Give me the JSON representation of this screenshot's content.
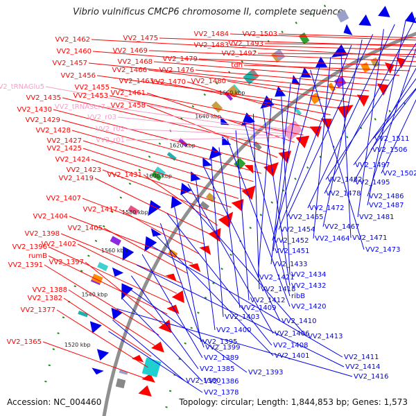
{
  "title": "Vibrio vulnificus CMCP6 chromosome II, complete sequence",
  "footer": {
    "accession": "Accession: NC_004460",
    "summary": "Topology: circular; Length: 1,844,853 bp; Genes: 1,573"
  },
  "colors": {
    "forward": "#ff0000",
    "reverse": "#0000ee",
    "rna": "#f4a0c8",
    "tick": "#1a8a1a",
    "backbone": "#909090"
  },
  "position_labels": [
    "1520 kbp",
    "1540 kbp",
    "1560 kbp",
    "1580 kbp",
    "1600 kbp",
    "1620 kbp",
    "1640 kbp",
    "1660 kbp"
  ],
  "forward_genes": [
    "VV2_1503",
    "VV2_1484",
    "VV2_1493",
    "VV2_1475",
    "VV2_1483",
    "VV2_1492",
    "VV2_1462",
    "VV2_1469",
    "VV2_1479",
    "tdh",
    "VV2_1460",
    "VV2_1468",
    "VV2_1476",
    "VV2_1457",
    "VV2_1466",
    "VV2_1480",
    "VV2_1456",
    "VV2_1463",
    "VV2_1470",
    "VV2_1455",
    "VV2_1453",
    "VV2_1461",
    "VV2_1435",
    "VV2_1458",
    "VV2_1430",
    "VV2_1429",
    "VV2_1428",
    "VV2_1427",
    "VV2_1425",
    "VV2_1424",
    "VV2_1423",
    "VV2_1431",
    "VV2_1419",
    "VV2_1407",
    "VV2_1417",
    "VV2_1404",
    "VV2_1405",
    "VV2_1398",
    "VV2_1402",
    "VV2_1396",
    "rumB",
    "VV2_1397",
    "VV2_1391",
    "VV2_1388",
    "VV2_1382",
    "VV2_1377",
    "VV2_1365"
  ],
  "rna_genes": [
    "VV2_tRNAGlu5",
    "VV2_tRNASer7",
    "VV2_r03",
    "VV2_r02",
    "VV2_r01"
  ],
  "reverse_genes": [
    "VV2_1511",
    "VV2_1506",
    "VV2_1497",
    "VV2_1502",
    "VV2_1495",
    "VV2_1482",
    "VV2_1486",
    "VV2_1478",
    "VV2_1487",
    "VV2_1472",
    "VV2_1481",
    "VV2_1465",
    "VV2_1467",
    "VV2_1454",
    "VV2_1471",
    "VV2_1464",
    "VV2_1452",
    "VV2_1473",
    "VV2_1451",
    "VV2_1433",
    "VV2_1434",
    "VV2_1421",
    "VV2_1432",
    "VV2_1418",
    "ribB",
    "VV2_1412",
    "VV2_1420",
    "VV2_1409",
    "VV2_1403",
    "VV2_1410",
    "VV2_1400",
    "VV2_1406",
    "VV2_1413",
    "VV2_1395",
    "VV2_1408",
    "VV2_1399",
    "VV2_1401",
    "VV2_1411",
    "VV2_1389",
    "VV2_1414",
    "VV2_1385",
    "VV2_1393",
    "VV2_1386",
    "VV2_1416",
    "VV2_1380",
    "VV2_1378"
  ]
}
